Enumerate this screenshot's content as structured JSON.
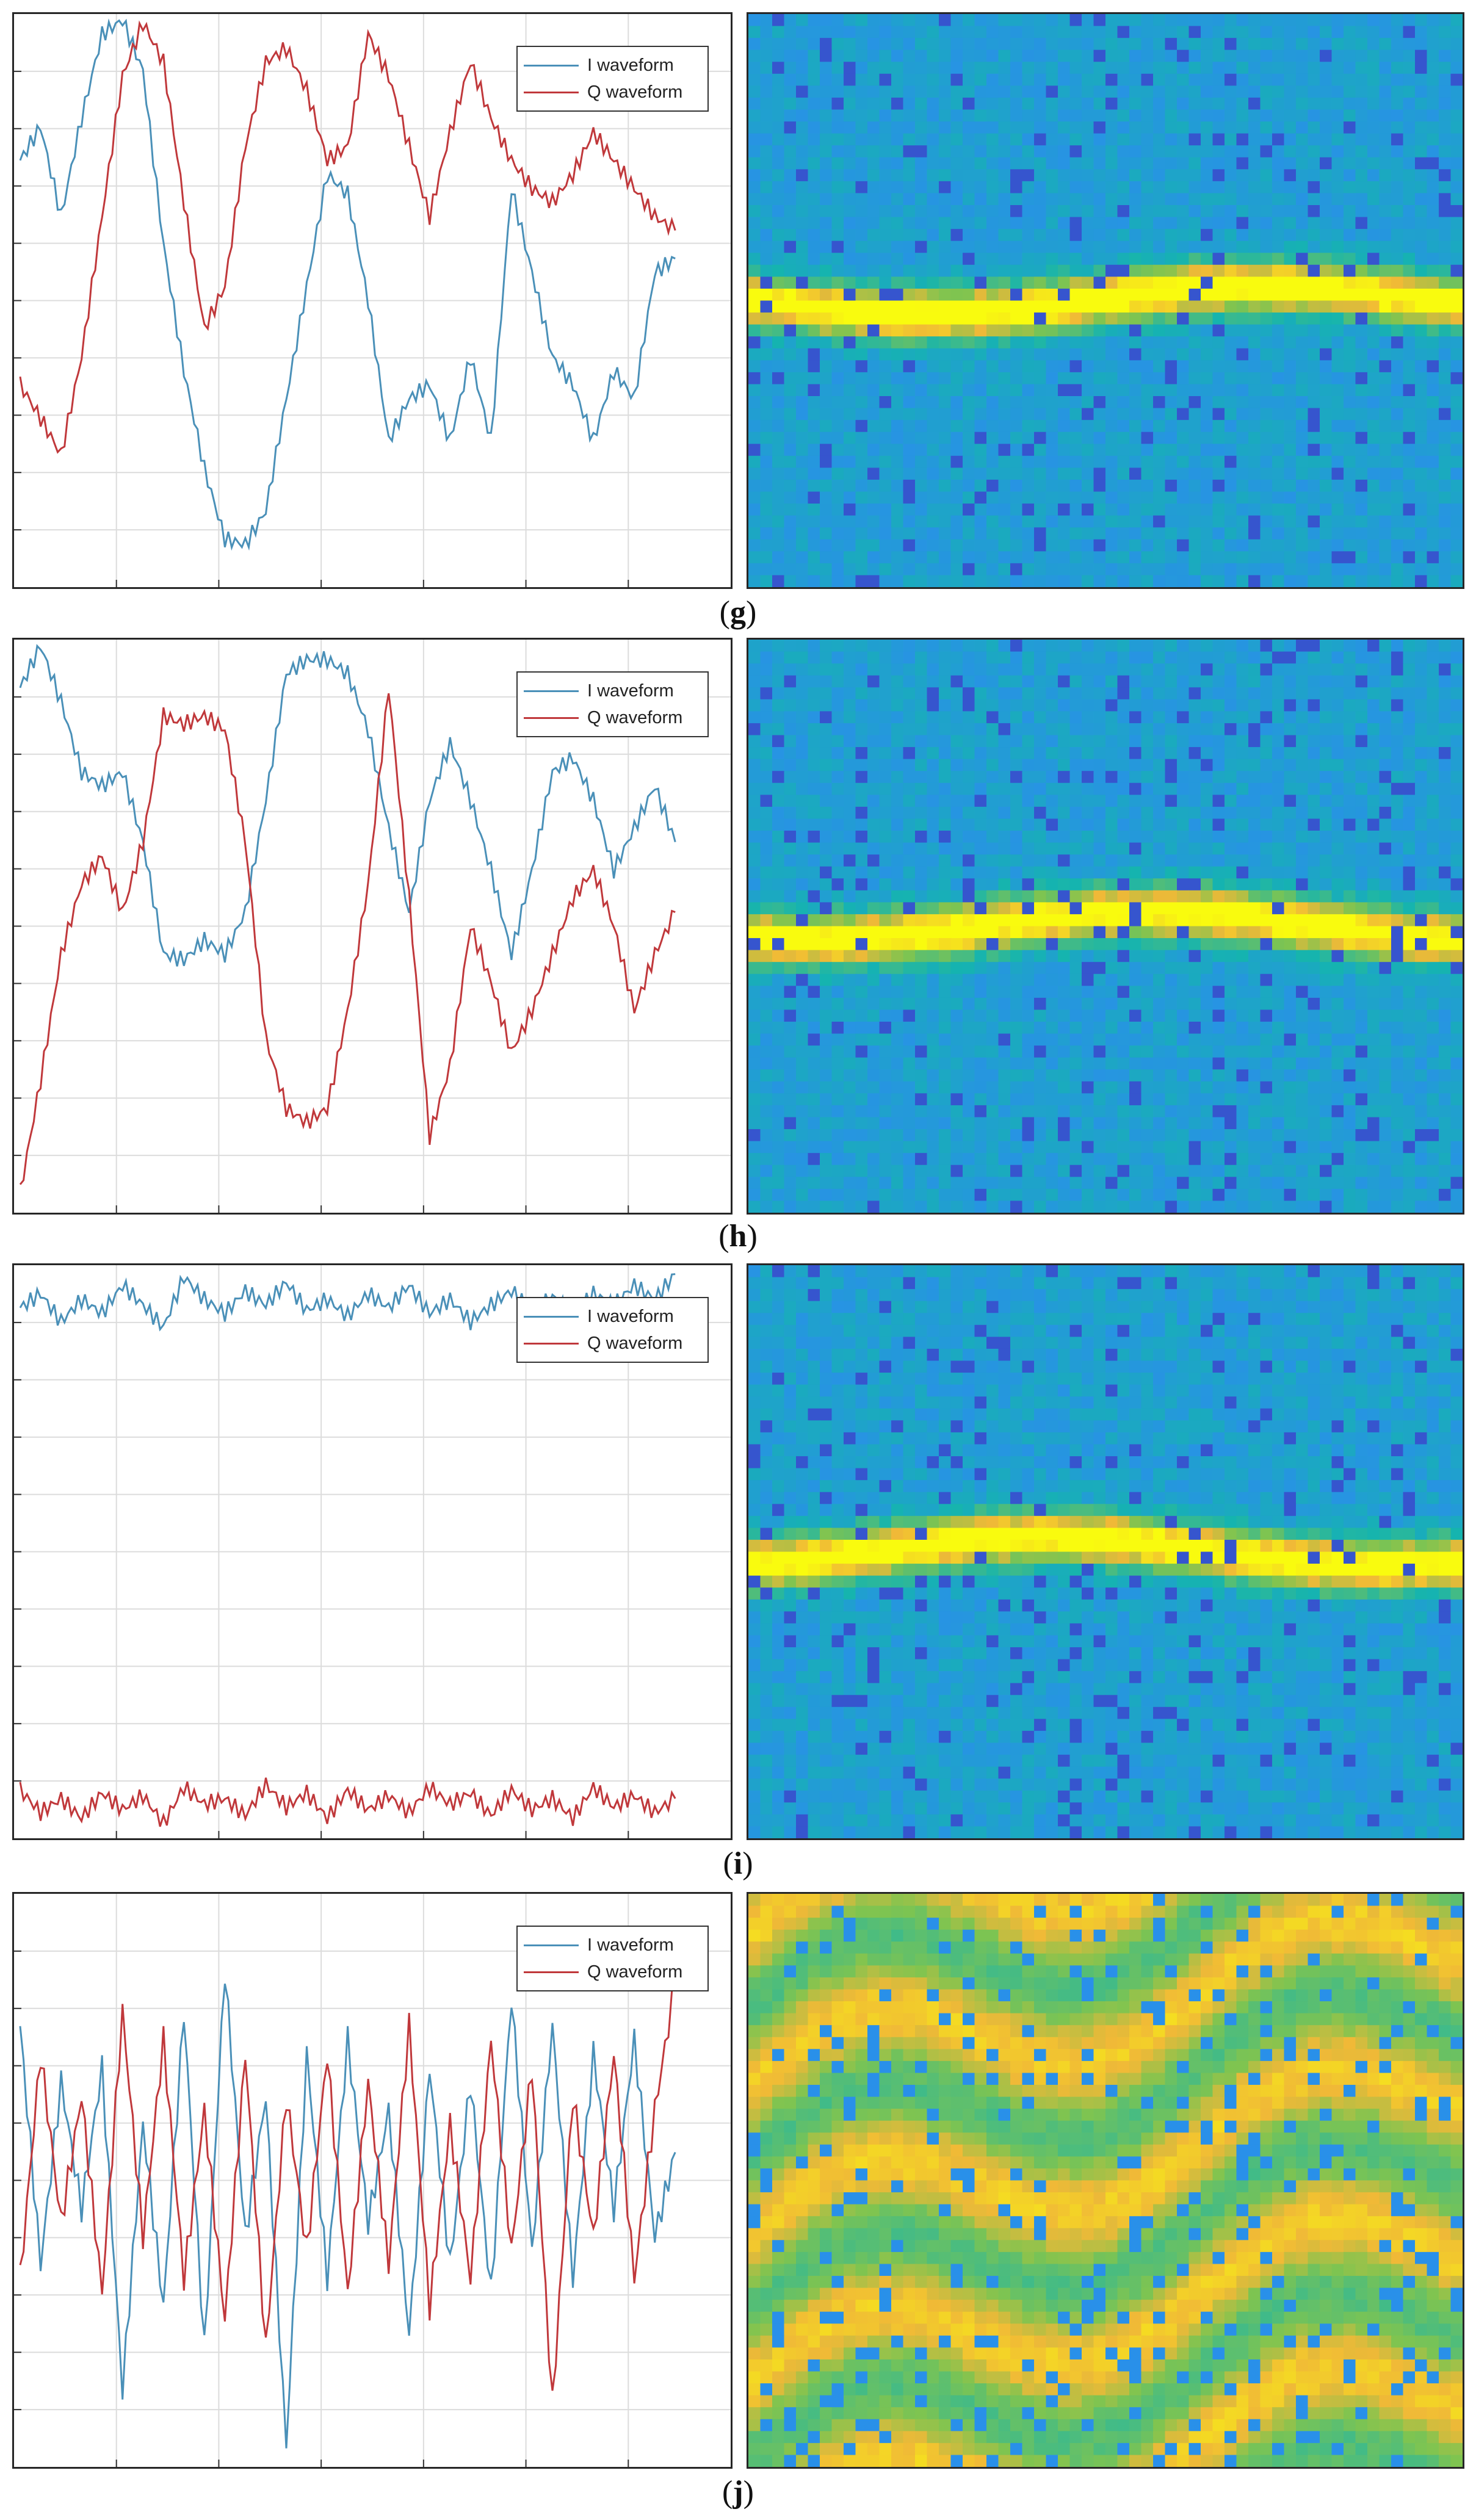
{
  "chart_data": [
    {
      "panel": "g",
      "type": "line",
      "legend": {
        "entries": [
          "I waveform",
          "Q waveform"
        ],
        "placement": "top-right"
      },
      "grid": true,
      "xlim": [
        0,
        128
      ],
      "ylim": [
        -1,
        1
      ],
      "series": [
        {
          "name": "I waveform",
          "color": "#4a90b8",
          "x": [
            0,
            4,
            8,
            12,
            16,
            20,
            24,
            28,
            32,
            36,
            40,
            44,
            48,
            52,
            56,
            60,
            64,
            68,
            72,
            76,
            80,
            84,
            88,
            92,
            96,
            100,
            104,
            108,
            112,
            116,
            120,
            124,
            128
          ],
          "y": [
            0.5,
            0.62,
            0.3,
            0.65,
            0.95,
            1.0,
            0.82,
            0.2,
            -0.25,
            -0.6,
            -0.85,
            -0.87,
            -0.75,
            -0.35,
            0.05,
            0.45,
            0.38,
            0.0,
            -0.5,
            -0.35,
            -0.3,
            -0.5,
            -0.2,
            -0.5,
            0.4,
            0.1,
            -0.2,
            -0.3,
            -0.5,
            -0.25,
            -0.35,
            0.1,
            0.15
          ]
        },
        {
          "name": "Q waveform",
          "color": "#c0383b",
          "x": [
            0,
            4,
            8,
            12,
            16,
            20,
            24,
            28,
            32,
            36,
            40,
            44,
            48,
            52,
            56,
            60,
            64,
            68,
            72,
            76,
            80,
            84,
            88,
            92,
            96,
            100,
            104,
            108,
            112,
            116,
            120,
            124,
            128
          ],
          "y": [
            -0.3,
            -0.42,
            -0.55,
            -0.2,
            0.3,
            0.8,
            0.99,
            0.85,
            0.35,
            -0.1,
            0.05,
            0.55,
            0.85,
            0.9,
            0.75,
            0.5,
            0.55,
            0.95,
            0.8,
            0.55,
            0.3,
            0.6,
            0.85,
            0.65,
            0.5,
            0.4,
            0.35,
            0.45,
            0.6,
            0.5,
            0.4,
            0.3,
            0.25
          ]
        }
      ],
      "spectrogram": {
        "band_center": 0.5,
        "background": "blue-green noise"
      }
    },
    {
      "panel": "h",
      "type": "line",
      "legend": {
        "entries": [
          "I waveform",
          "Q waveform"
        ],
        "placement": "top-right"
      },
      "grid": true,
      "xlim": [
        0,
        128
      ],
      "ylim": [
        -1,
        1
      ],
      "series": [
        {
          "name": "I waveform",
          "color": "#4a90b8",
          "x": [
            0,
            4,
            8,
            12,
            16,
            20,
            24,
            28,
            32,
            36,
            40,
            44,
            48,
            52,
            56,
            60,
            64,
            68,
            72,
            76,
            80,
            84,
            88,
            92,
            96,
            100,
            104,
            108,
            112,
            116,
            120,
            124,
            128
          ],
          "y": [
            0.85,
            1.0,
            0.8,
            0.55,
            0.5,
            0.55,
            0.3,
            -0.1,
            -0.12,
            -0.05,
            -0.1,
            0.05,
            0.45,
            0.9,
            0.95,
            0.95,
            0.9,
            0.7,
            0.35,
            0.05,
            0.45,
            0.65,
            0.45,
            0.2,
            -0.1,
            0.2,
            0.55,
            0.6,
            0.45,
            0.2,
            0.35,
            0.5,
            0.3
          ]
        },
        {
          "name": "Q waveform",
          "color": "#c0383b",
          "x": [
            0,
            4,
            8,
            12,
            16,
            20,
            24,
            28,
            32,
            36,
            40,
            44,
            48,
            52,
            56,
            60,
            64,
            68,
            72,
            76,
            80,
            84,
            88,
            92,
            96,
            100,
            104,
            108,
            112,
            116,
            120,
            124,
            128
          ],
          "y": [
            -0.95,
            -0.55,
            -0.1,
            0.15,
            0.25,
            0.05,
            0.3,
            0.75,
            0.72,
            0.75,
            0.7,
            0.3,
            -0.4,
            -0.65,
            -0.7,
            -0.65,
            -0.3,
            0.15,
            0.85,
            0.1,
            -0.75,
            -0.5,
            0.0,
            -0.2,
            -0.45,
            -0.3,
            -0.1,
            0.1,
            0.2,
            0.0,
            -0.3,
            -0.1,
            0.05
          ]
        }
      ],
      "spectrogram": {
        "band_center": 0.5,
        "background": "blue-green noise"
      }
    },
    {
      "panel": "i",
      "type": "line",
      "legend": {
        "entries": [
          "I waveform",
          "Q waveform"
        ],
        "placement": "top-right"
      },
      "grid": true,
      "xlim": [
        0,
        128
      ],
      "ylim": [
        -1,
        1
      ],
      "series": [
        {
          "name": "I waveform",
          "color": "#4a90b8",
          "x": [
            0,
            4,
            8,
            12,
            16,
            20,
            24,
            28,
            32,
            36,
            40,
            44,
            48,
            52,
            56,
            60,
            64,
            68,
            72,
            76,
            80,
            84,
            88,
            92,
            96,
            100,
            104,
            108,
            112,
            116,
            120,
            124,
            128
          ],
          "y": [
            0.87,
            0.92,
            0.82,
            0.9,
            0.85,
            0.95,
            0.88,
            0.8,
            0.98,
            0.9,
            0.85,
            0.93,
            0.88,
            0.96,
            0.86,
            0.9,
            0.84,
            0.92,
            0.87,
            0.95,
            0.85,
            0.9,
            0.82,
            0.88,
            0.93,
            0.86,
            0.91,
            0.85,
            0.92,
            0.88,
            0.95,
            0.9,
            0.99
          ]
        },
        {
          "name": "Q waveform",
          "color": "#c0383b",
          "x": [
            0,
            4,
            8,
            12,
            16,
            20,
            24,
            28,
            32,
            36,
            40,
            44,
            48,
            52,
            56,
            60,
            64,
            68,
            72,
            76,
            80,
            84,
            88,
            92,
            96,
            100,
            104,
            108,
            112,
            116,
            120,
            124,
            128
          ],
          "y": [
            -0.85,
            -0.93,
            -0.88,
            -0.95,
            -0.86,
            -0.92,
            -0.87,
            -0.97,
            -0.84,
            -0.9,
            -0.88,
            -0.94,
            -0.83,
            -0.91,
            -0.86,
            -0.95,
            -0.85,
            -0.92,
            -0.87,
            -0.93,
            -0.84,
            -0.9,
            -0.86,
            -0.94,
            -0.85,
            -0.92,
            -0.88,
            -0.95,
            -0.84,
            -0.91,
            -0.87,
            -0.93,
            -0.88
          ]
        }
      ],
      "spectrogram": {
        "band_center": 0.5,
        "background": "blue-green noise"
      }
    },
    {
      "panel": "j",
      "type": "line",
      "legend": {
        "entries": [
          "I waveform",
          "Q waveform"
        ],
        "placement": "top-right"
      },
      "grid": true,
      "xlim": [
        0,
        128
      ],
      "ylim": [
        -1,
        1
      ],
      "series": [
        {
          "name": "I waveform",
          "color": "#4a90b8",
          "x": [
            0,
            4,
            8,
            12,
            16,
            20,
            24,
            28,
            32,
            36,
            40,
            44,
            48,
            52,
            56,
            60,
            64,
            68,
            72,
            76,
            80,
            84,
            88,
            92,
            96,
            100,
            104,
            108,
            112,
            116,
            120,
            124,
            128
          ],
          "y": [
            0.55,
            -0.3,
            0.35,
            -0.1,
            0.4,
            -0.75,
            0.2,
            -0.45,
            0.6,
            -0.6,
            0.75,
            -0.2,
            0.3,
            -0.95,
            0.45,
            -0.35,
            0.5,
            -0.15,
            0.25,
            -0.55,
            0.4,
            -0.3,
            0.35,
            -0.4,
            0.65,
            -0.25,
            0.55,
            -0.35,
            0.45,
            -0.1,
            0.5,
            -0.2,
            0.1
          ]
        },
        {
          "name": "Q waveform",
          "color": "#c0383b",
          "x": [
            0,
            4,
            8,
            12,
            16,
            20,
            24,
            28,
            32,
            36,
            40,
            44,
            48,
            52,
            56,
            60,
            64,
            68,
            72,
            76,
            80,
            84,
            88,
            92,
            96,
            100,
            104,
            108,
            112,
            116,
            120,
            124,
            128
          ],
          "y": [
            -0.35,
            0.45,
            -0.15,
            0.3,
            -0.4,
            0.6,
            -0.2,
            0.5,
            -0.35,
            0.25,
            -0.5,
            0.45,
            -0.6,
            0.3,
            -0.25,
            0.45,
            -0.4,
            0.35,
            -0.3,
            0.55,
            -0.45,
            0.2,
            -0.35,
            0.5,
            -0.25,
            0.4,
            -0.8,
            0.3,
            -0.2,
            0.45,
            -0.35,
            0.25,
            0.7
          ]
        }
      ],
      "spectrogram": {
        "band_center": null,
        "background": "yellow-orange wavy bands"
      }
    }
  ],
  "labels": [
    "g",
    "h",
    "i",
    "j"
  ]
}
